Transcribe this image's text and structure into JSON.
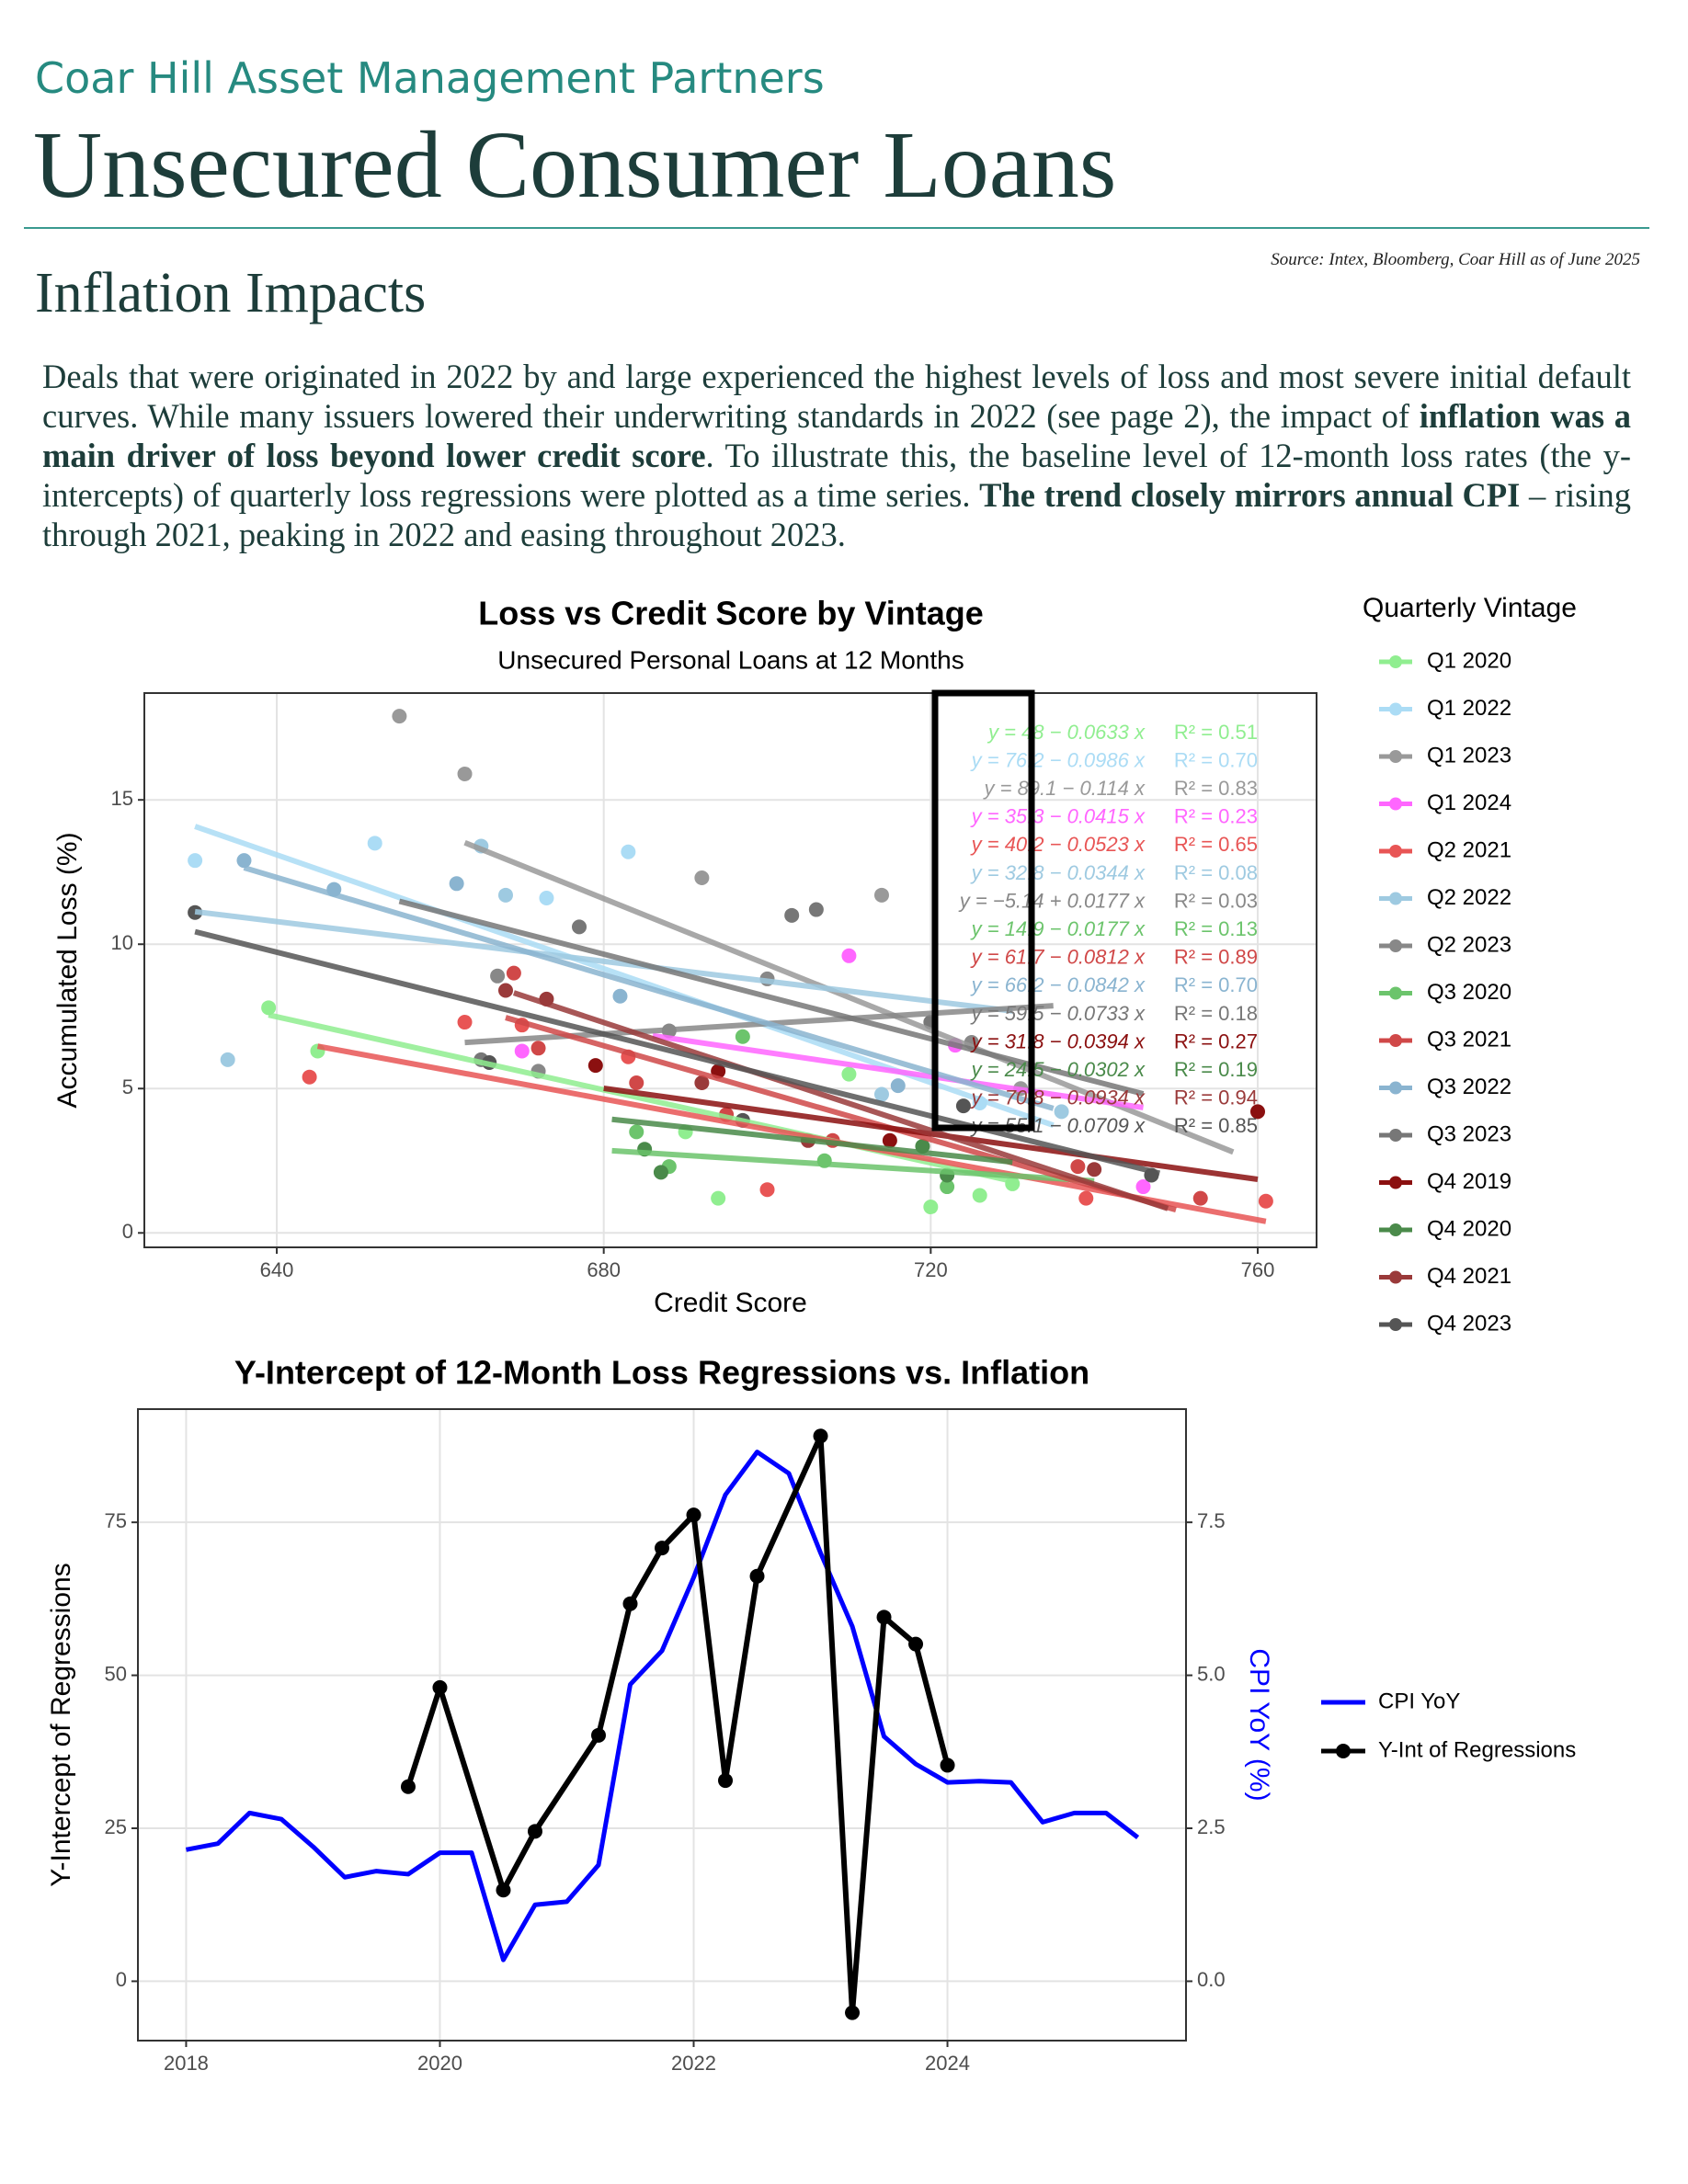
{
  "company": "Coar Hill Asset Management Partners",
  "title": "Unsecured Consumer Loans",
  "section": "Inflation Impacts",
  "source": "Source: Intex, Bloomberg, Coar Hill as of June 2025",
  "body": [
    {
      "text": "Deals that were originated in 2022 by and large experienced the highest levels of loss and most severe initial default curves. While many issuers lowered their underwriting standards in 2022 (see page 2), the impact of ",
      "bold": false
    },
    {
      "text": "inflation was a main driver of loss beyond lower credit score",
      "bold": true
    },
    {
      "text": ". To illustrate this, the baseline level of 12-month loss rates (the y-intercepts) of quarterly loss regressions were plotted as a time series. ",
      "bold": false
    },
    {
      "text": "The trend closely mirrors annual CPI",
      "bold": true
    },
    {
      "text": " – rising through 2021, peaking in 2022 and easing throughout 2023.",
      "bold": false
    }
  ],
  "chart_data": [
    {
      "type": "scatter",
      "title": "Loss vs Credit Score by Vintage",
      "subtitle": "Unsecured Personal Loans at 12 Months",
      "x_label": "Credit Score",
      "y_label": "Accumulated Loss (%)",
      "legend_title": "Quarterly Vintage",
      "xlim": [
        623.8,
        767.2
      ],
      "ylim": [
        -0.5,
        18.7
      ],
      "xticks": [
        640,
        680,
        720,
        760
      ],
      "yticks": [
        0,
        5,
        10,
        15
      ],
      "grid": true,
      "series": [
        {
          "name": "Q1 2020",
          "color": "#90ee90",
          "x": [
            639,
            645,
            690,
            694,
            710,
            720,
            726,
            730
          ],
          "values": [
            7.8,
            6.3,
            3.5,
            1.2,
            5.5,
            0.9,
            1.3,
            1.7
          ],
          "intercept": 48,
          "slope": -0.0633,
          "fit_x": [
            639,
            730
          ],
          "equation": "y = 48 − 0.0633 x",
          "r2_label": "R² = 0.51"
        },
        {
          "name": "Q1 2022",
          "color": "#abdcf5",
          "x": [
            630,
            652,
            673,
            683,
            726
          ],
          "values": [
            12.9,
            13.5,
            11.6,
            13.2,
            4.5
          ],
          "intercept": 76.2,
          "slope": -0.0986,
          "fit_x": [
            630,
            735
          ],
          "equation": "y = 76.2 − 0.0986 x",
          "r2_label": "R² = 0.70"
        },
        {
          "name": "Q1 2023",
          "color": "#999999",
          "x": [
            655,
            663,
            692,
            714,
            731
          ],
          "values": [
            17.9,
            15.9,
            12.3,
            11.7,
            5.0
          ],
          "intercept": 89.1,
          "slope": -0.114,
          "fit_x": [
            663,
            757
          ],
          "equation": "y = 89.1 − 0.114 x",
          "r2_label": "R² = 0.83"
        },
        {
          "name": "Q1 2024",
          "color": "#ff66ff",
          "x": [
            670,
            710,
            723,
            746
          ],
          "values": [
            6.3,
            9.6,
            6.5,
            1.6
          ],
          "intercept": 35.3,
          "slope": -0.0415,
          "fit_x": [
            686,
            746
          ],
          "equation": "y = 35.3 − 0.0415 x",
          "r2_label": "R² = 0.23"
        },
        {
          "name": "Q2 2021",
          "color": "#e85555",
          "x": [
            644,
            663,
            670,
            683,
            700,
            739,
            761
          ],
          "values": [
            5.4,
            7.3,
            7.2,
            6.1,
            1.5,
            1.2,
            1.1
          ],
          "intercept": 40.2,
          "slope": -0.0523,
          "fit_x": [
            645,
            761
          ],
          "equation": "y = 40.2 − 0.0523 x",
          "r2_label": "R² = 0.65"
        },
        {
          "name": "Q2 2022",
          "color": "#9ecae1",
          "x": [
            634,
            665,
            668,
            714,
            736
          ],
          "values": [
            6.0,
            13.4,
            11.7,
            4.8,
            4.2
          ],
          "intercept": 32.8,
          "slope": -0.0344,
          "fit_x": [
            630,
            730
          ],
          "equation": "y = 32.8 − 0.0344 x",
          "r2_label": "R² = 0.08"
        },
        {
          "name": "Q2 2023",
          "color": "#888888",
          "x": [
            667,
            672,
            688,
            700,
            725
          ],
          "values": [
            8.9,
            5.6,
            7.0,
            8.8,
            6.6
          ],
          "intercept": -5.14,
          "slope": 0.0177,
          "fit_x": [
            663,
            735
          ],
          "equation": "y = −5.14 + 0.0177 x",
          "r2_label": "R² = 0.03"
        },
        {
          "name": "Q3 2020",
          "color": "#6cc46c",
          "x": [
            684,
            688,
            697,
            707,
            722
          ],
          "values": [
            3.5,
            2.3,
            6.8,
            2.5,
            1.6
          ],
          "intercept": 14.9,
          "slope": -0.0177,
          "fit_x": [
            681,
            740
          ],
          "equation": "y = 14.9 − 0.0177 x",
          "r2_label": "R² = 0.13"
        },
        {
          "name": "Q3 2021",
          "color": "#d04848",
          "x": [
            669,
            672,
            684,
            695,
            708,
            738,
            753
          ],
          "values": [
            9.0,
            6.4,
            5.2,
            4.1,
            3.2,
            2.3,
            1.2
          ],
          "intercept": 61.7,
          "slope": -0.0812,
          "fit_x": [
            668,
            750
          ],
          "equation": "y = 61.7 − 0.0812 x",
          "r2_label": "R² = 0.89"
        },
        {
          "name": "Q3 2022",
          "color": "#8ab4d0",
          "x": [
            636,
            647,
            662,
            682,
            716
          ],
          "values": [
            12.9,
            11.9,
            12.1,
            8.2,
            5.1
          ],
          "intercept": 66.2,
          "slope": -0.0842,
          "fit_x": [
            636,
            735
          ],
          "equation": "y = 66.2 − 0.0842 x",
          "r2_label": "R² = 0.70"
        },
        {
          "name": "Q3 2023",
          "color": "#777777",
          "x": [
            665,
            677,
            703,
            706,
            720
          ],
          "values": [
            6.0,
            10.6,
            11.0,
            11.2,
            7.3
          ],
          "intercept": 59.5,
          "slope": -0.0733,
          "fit_x": [
            655,
            746
          ],
          "equation": "y = 59.5 − 0.0733 x",
          "r2_label": "R² = 0.18"
        },
        {
          "name": "Q4 2019",
          "color": "#8b1010",
          "x": [
            679,
            694,
            715,
            760
          ],
          "values": [
            5.8,
            5.6,
            3.2,
            4.2
          ],
          "intercept": 31.8,
          "slope": -0.0394,
          "fit_x": [
            680,
            760
          ],
          "equation": "y = 31.8 − 0.0394 x",
          "r2_label": "R² = 0.27"
        },
        {
          "name": "Q4 2020",
          "color": "#4a8a4a",
          "x": [
            685,
            687,
            719,
            722
          ],
          "values": [
            2.9,
            2.1,
            3.0,
            2.0
          ],
          "intercept": 24.5,
          "slope": -0.0302,
          "fit_x": [
            681,
            730
          ],
          "equation": "y = 24.5 − 0.0302 x",
          "r2_label": "R² = 0.19"
        },
        {
          "name": "Q4 2021",
          "color": "#9a3a3a",
          "x": [
            668,
            673,
            692,
            705,
            740
          ],
          "values": [
            8.4,
            8.1,
            5.2,
            3.2,
            2.2
          ],
          "intercept": 70.8,
          "slope": -0.0934,
          "fit_x": [
            669,
            749
          ],
          "equation": "y = 70.8 − 0.0934 x",
          "r2_label": "R² = 0.94"
        },
        {
          "name": "Q4 2023",
          "color": "#555555",
          "x": [
            630,
            666,
            697,
            724,
            747
          ],
          "values": [
            11.1,
            5.9,
            3.9,
            4.4,
            2.0
          ],
          "intercept": 55.1,
          "slope": -0.0709,
          "fit_x": [
            630,
            748
          ],
          "equation": "y = 55.1 − 0.0709 x",
          "r2_label": "R² = 0.85"
        }
      ]
    },
    {
      "type": "line",
      "title": "Y-Intercept of 12-Month Loss Regressions vs. Inflation",
      "y_label": "Y-Intercept of Regressions",
      "y2_label": "CPI YoY (%)",
      "y2_label_color": "#0000ff",
      "xlim": [
        2017.62,
        2025.88
      ],
      "ylim": [
        -9.7,
        93.5
      ],
      "y2lim": [
        -0.97,
        9.35
      ],
      "xticks": [
        2018,
        2020,
        2022,
        2024
      ],
      "yticks": [
        0,
        25,
        50,
        75
      ],
      "y2ticks": [
        {
          "value": 0,
          "label": "0.0"
        },
        {
          "value": 2.5,
          "label": "2.5"
        },
        {
          "value": 5,
          "label": "5.0"
        },
        {
          "value": 7.5,
          "label": "7.5"
        }
      ],
      "grid": true,
      "series": [
        {
          "name": "CPI YoY",
          "color": "#0000ff",
          "axis": "y2",
          "x": [
            2018,
            2018.25,
            2018.5,
            2018.75,
            2019,
            2019.25,
            2019.5,
            2019.75,
            2020,
            2020.25,
            2020.5,
            2020.75,
            2021,
            2021.25,
            2021.5,
            2021.75,
            2022,
            2022.25,
            2022.5,
            2022.75,
            2023,
            2023.25,
            2023.5,
            2023.75,
            2024,
            2024.25,
            2024.5,
            2024.75,
            2025,
            2025.25,
            2025.5
          ],
          "values": [
            2.15,
            2.25,
            2.75,
            2.65,
            2.2,
            1.7,
            1.8,
            1.75,
            2.1,
            2.1,
            0.35,
            1.25,
            1.3,
            1.9,
            4.85,
            5.4,
            6.6,
            7.95,
            8.65,
            8.3,
            7.0,
            5.8,
            4.0,
            3.55,
            3.25,
            3.27,
            3.25,
            2.6,
            2.75,
            2.75,
            2.35
          ]
        },
        {
          "name": "Y-Int of Regressions",
          "color": "#000000",
          "markers": true,
          "x": [
            2019.75,
            2020,
            2020.5,
            2020.75,
            2021.25,
            2021.5,
            2021.75,
            2022,
            2022.25,
            2022.5,
            2023,
            2023.25,
            2023.5,
            2023.75,
            2024
          ],
          "values": [
            31.8,
            48,
            14.9,
            24.5,
            40.2,
            61.7,
            70.8,
            76.2,
            32.8,
            66.2,
            89.1,
            -5.14,
            59.5,
            55.1,
            35.3
          ]
        }
      ]
    }
  ]
}
